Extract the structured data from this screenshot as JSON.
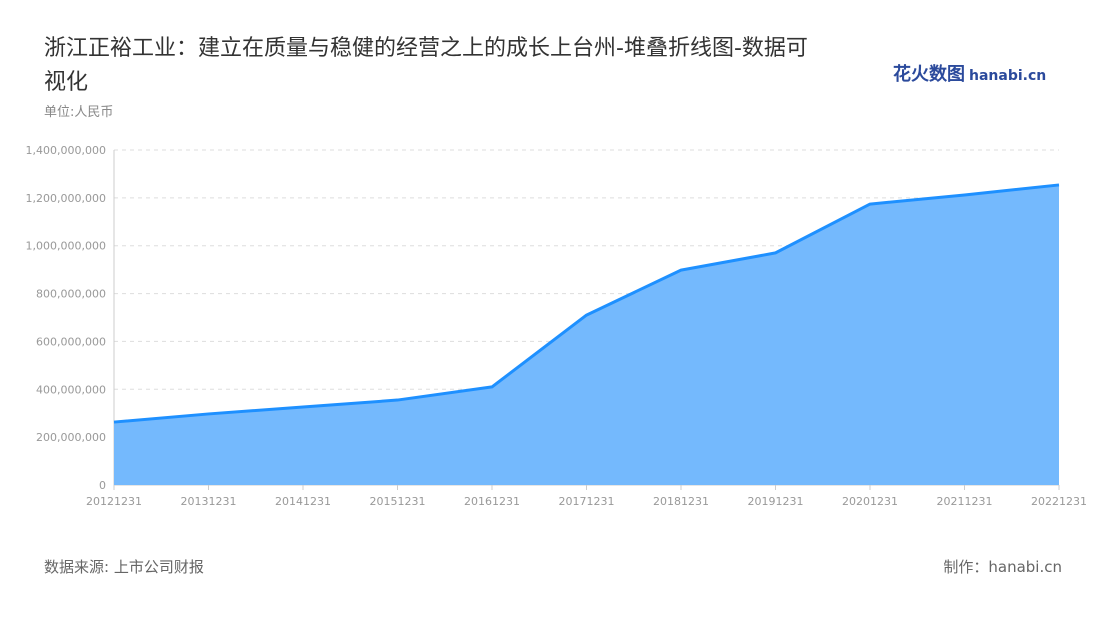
{
  "title": "浙江正裕工业：建立在质量与稳健的经营之上的成长上台州-堆叠折线图-数据可视化",
  "unit": "单位:人民币",
  "logo": {
    "cn": "花火数图",
    "en": "hanabi.cn"
  },
  "source": "数据来源: 上市公司财报",
  "maker": "制作：hanabi.cn",
  "colors": {
    "line": "#1e90ff",
    "area": "#74b9fd",
    "grid": "#dddddd",
    "axis_text": "#999999"
  },
  "chart_data": {
    "type": "area",
    "categories": [
      "20121231",
      "20131231",
      "20141231",
      "20151231",
      "20161231",
      "20171231",
      "20181231",
      "20191231",
      "20201231",
      "20211231",
      "20221231"
    ],
    "values": [
      263000000,
      297000000,
      326000000,
      355000000,
      410000000,
      710000000,
      898000000,
      970000000,
      1174000000,
      1212000000,
      1254000000
    ],
    "ylim": [
      0,
      1400000000
    ],
    "yticks": [
      "0",
      "200,000,000",
      "400,000,000",
      "600,000,000",
      "800,000,000",
      "1,000,000,000",
      "1,200,000,000",
      "1,400,000,000"
    ],
    "grid": true
  }
}
